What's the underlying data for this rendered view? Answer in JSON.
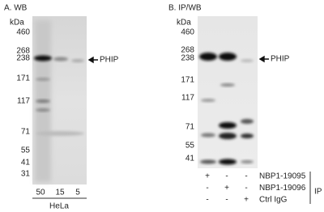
{
  "panel_a": {
    "title": "A. WB",
    "unit": "kDa",
    "markers": [
      "460",
      "268",
      "238",
      "171",
      "117",
      "71",
      "55",
      "41",
      "31"
    ],
    "band_label": "PHIP",
    "lanes": [
      "50",
      "15",
      "5"
    ],
    "cell_line": "HeLa"
  },
  "panel_b": {
    "title": "B. IP/WB",
    "unit": "kDa",
    "markers": [
      "460",
      "268",
      "238",
      "171",
      "117",
      "71",
      "55",
      "41"
    ],
    "band_label": "PHIP",
    "rows": [
      {
        "label": "NBP1-19095",
        "signs": [
          "+",
          "-",
          "-"
        ]
      },
      {
        "label": "NBP1-19096",
        "signs": [
          "-",
          "+",
          "-"
        ]
      },
      {
        "label": "Ctrl IgG",
        "signs": [
          "-",
          "-",
          "+"
        ]
      }
    ],
    "group_label": "IP"
  }
}
